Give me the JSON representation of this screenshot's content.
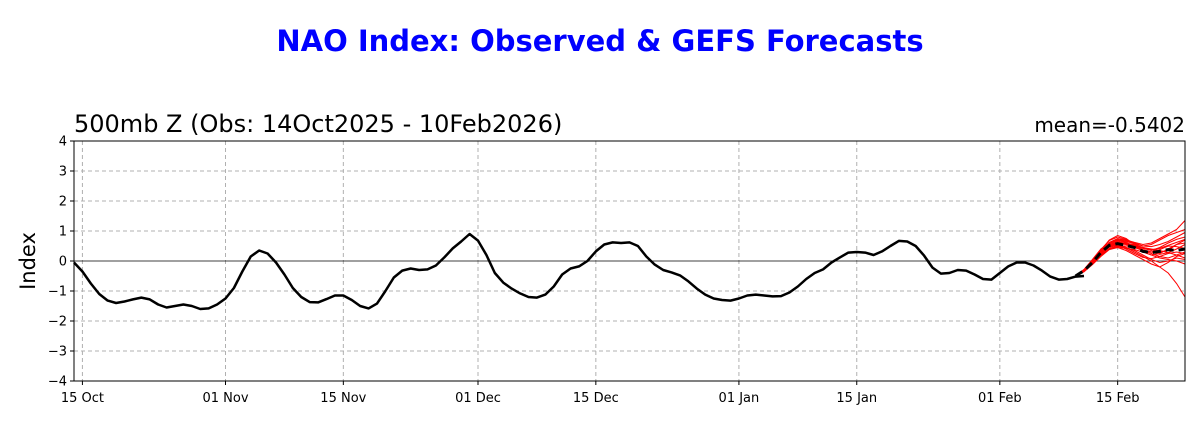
{
  "chart_data": {
    "type": "line",
    "title": "NAO Index: Observed & GEFS Forecasts",
    "subtitle": "500mb Z (Obs: 14Oct2025 - 10Feb2026)",
    "stat_label": "mean=-0.5402",
    "xlabel": "",
    "ylabel": "Index",
    "ylim": [
      -4,
      4
    ],
    "yticks": [
      4,
      3,
      2,
      1,
      0,
      -1,
      -2,
      -3,
      -4
    ],
    "xlim": [
      "2025-10-14",
      "2026-02-23"
    ],
    "xticks": [
      {
        "date": "2025-10-15",
        "label": "15 Oct"
      },
      {
        "date": "2025-11-01",
        "label": "01 Nov"
      },
      {
        "date": "2025-11-15",
        "label": "15 Nov"
      },
      {
        "date": "2025-12-01",
        "label": "01 Dec"
      },
      {
        "date": "2025-12-15",
        "label": "15 Dec"
      },
      {
        "date": "2026-01-01",
        "label": "01 Jan"
      },
      {
        "date": "2026-01-15",
        "label": "15 Jan"
      },
      {
        "date": "2026-02-01",
        "label": "01 Feb"
      },
      {
        "date": "2026-02-15",
        "label": "15 Feb"
      }
    ],
    "grid": true,
    "zero_line": true,
    "colors": {
      "observed": "#000000",
      "members": "#ff0000",
      "ensemble_mean": "#000000",
      "title": "#0000ff"
    },
    "observed": {
      "start": "2025-10-14",
      "values": [
        -0.05,
        -0.35,
        -0.75,
        -1.1,
        -1.32,
        -1.4,
        -1.35,
        -1.28,
        -1.22,
        -1.28,
        -1.45,
        -1.55,
        -1.5,
        -1.45,
        -1.5,
        -1.6,
        -1.58,
        -1.45,
        -1.25,
        -0.9,
        -0.35,
        0.15,
        0.35,
        0.25,
        -0.05,
        -0.45,
        -0.9,
        -1.2,
        -1.37,
        -1.38,
        -1.27,
        -1.15,
        -1.15,
        -1.3,
        -1.5,
        -1.58,
        -1.42,
        -1.0,
        -0.55,
        -0.32,
        -0.25,
        -0.3,
        -0.28,
        -0.15,
        0.12,
        0.42,
        0.65,
        0.9,
        0.68,
        0.2,
        -0.4,
        -0.72,
        -0.92,
        -1.08,
        -1.2,
        -1.22,
        -1.12,
        -0.85,
        -0.45,
        -0.25,
        -0.18,
        0.0,
        0.32,
        0.55,
        0.62,
        0.6,
        0.62,
        0.5,
        0.15,
        -0.12,
        -0.3,
        -0.38,
        -0.48,
        -0.68,
        -0.92,
        -1.12,
        -1.25,
        -1.3,
        -1.32,
        -1.25,
        -1.15,
        -1.12,
        -1.15,
        -1.18,
        -1.17,
        -1.05,
        -0.85,
        -0.6,
        -0.4,
        -0.28,
        -0.05,
        0.12,
        0.28,
        0.3,
        0.28,
        0.2,
        0.32,
        0.5,
        0.67,
        0.65,
        0.5,
        0.18,
        -0.22,
        -0.42,
        -0.4,
        -0.3,
        -0.32,
        -0.45,
        -0.6,
        -0.62,
        -0.4,
        -0.18,
        -0.05,
        -0.05,
        -0.15,
        -0.32,
        -0.52,
        -0.62,
        -0.6,
        -0.52,
        -0.5
      ]
    },
    "ensemble_mean": {
      "start": "2026-02-10",
      "values": [
        -0.5,
        -0.32,
        -0.05,
        0.28,
        0.52,
        0.58,
        0.52,
        0.45,
        0.32,
        0.28,
        0.32,
        0.38,
        0.35,
        0.4
      ]
    },
    "ensemble_members": [
      {
        "start": "2026-02-10",
        "values": [
          -0.5,
          -0.3,
          0.0,
          0.35,
          0.7,
          0.85,
          0.75,
          0.55,
          0.3,
          0.2,
          0.25,
          0.4,
          0.55,
          0.7
        ]
      },
      {
        "start": "2026-02-10",
        "values": [
          -0.5,
          -0.35,
          -0.1,
          0.2,
          0.4,
          0.45,
          0.35,
          0.2,
          0.05,
          -0.1,
          -0.2,
          -0.05,
          0.15,
          0.25
        ]
      },
      {
        "start": "2026-02-10",
        "values": [
          -0.5,
          -0.28,
          0.05,
          0.4,
          0.6,
          0.72,
          0.68,
          0.6,
          0.5,
          0.55,
          0.7,
          0.85,
          0.95,
          1.05
        ]
      },
      {
        "start": "2026-02-10",
        "values": [
          -0.5,
          -0.33,
          -0.08,
          0.22,
          0.48,
          0.55,
          0.45,
          0.3,
          0.15,
          0.0,
          -0.2,
          -0.4,
          -0.75,
          -1.2
        ]
      },
      {
        "start": "2026-02-10",
        "values": [
          -0.5,
          -0.3,
          0.02,
          0.3,
          0.55,
          0.62,
          0.6,
          0.52,
          0.42,
          0.35,
          0.45,
          0.6,
          0.72,
          0.8
        ]
      },
      {
        "start": "2026-02-10",
        "values": [
          -0.5,
          -0.36,
          -0.12,
          0.15,
          0.38,
          0.45,
          0.42,
          0.38,
          0.3,
          0.2,
          0.1,
          0.05,
          0.0,
          -0.1
        ]
      },
      {
        "start": "2026-02-10",
        "values": [
          -0.5,
          -0.3,
          -0.02,
          0.32,
          0.62,
          0.75,
          0.7,
          0.62,
          0.55,
          0.6,
          0.75,
          0.9,
          1.05,
          1.35
        ]
      },
      {
        "start": "2026-02-10",
        "values": [
          -0.5,
          -0.32,
          -0.06,
          0.26,
          0.5,
          0.58,
          0.55,
          0.45,
          0.35,
          0.25,
          0.15,
          0.1,
          0.2,
          0.3
        ]
      },
      {
        "start": "2026-02-10",
        "values": [
          -0.5,
          -0.31,
          -0.03,
          0.3,
          0.58,
          0.68,
          0.62,
          0.5,
          0.38,
          0.3,
          0.22,
          0.28,
          0.4,
          0.55
        ]
      },
      {
        "start": "2026-02-10",
        "values": [
          -0.5,
          -0.34,
          -0.09,
          0.2,
          0.42,
          0.5,
          0.5,
          0.48,
          0.45,
          0.4,
          0.35,
          0.28,
          0.2,
          0.1
        ]
      },
      {
        "start": "2026-02-10",
        "values": [
          -0.5,
          -0.29,
          0.03,
          0.38,
          0.68,
          0.8,
          0.72,
          0.58,
          0.42,
          0.38,
          0.42,
          0.52,
          0.62,
          0.72
        ]
      },
      {
        "start": "2026-02-10",
        "values": [
          -0.5,
          -0.33,
          -0.07,
          0.24,
          0.46,
          0.52,
          0.4,
          0.25,
          0.12,
          0.08,
          0.15,
          0.25,
          0.3,
          0.25
        ]
      },
      {
        "start": "2026-02-10",
        "values": [
          -0.5,
          -0.3,
          0.0,
          0.33,
          0.6,
          0.7,
          0.65,
          0.58,
          0.5,
          0.48,
          0.55,
          0.65,
          0.8,
          0.95
        ]
      },
      {
        "start": "2026-02-10",
        "values": [
          -0.5,
          -0.35,
          -0.11,
          0.18,
          0.4,
          0.48,
          0.45,
          0.35,
          0.2,
          0.05,
          -0.05,
          0.0,
          0.1,
          0.05
        ]
      },
      {
        "start": "2026-02-10",
        "values": [
          -0.5,
          -0.31,
          -0.04,
          0.28,
          0.55,
          0.65,
          0.58,
          0.48,
          0.35,
          0.3,
          0.38,
          0.5,
          0.48,
          0.42
        ]
      },
      {
        "start": "2026-02-10",
        "values": [
          -0.5,
          -0.32,
          -0.05,
          0.27,
          0.52,
          0.6,
          0.58,
          0.55,
          0.45,
          0.38,
          0.3,
          0.35,
          0.55,
          0.6
        ]
      }
    ]
  }
}
